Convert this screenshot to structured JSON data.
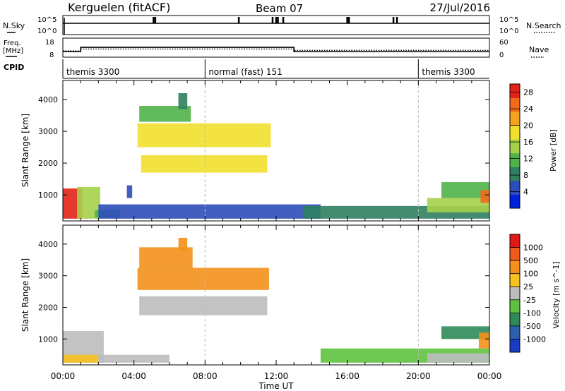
{
  "header": {
    "station": "Kerguelen (fitACF)",
    "beam": "Beam 07",
    "date": "27/Jul/2016"
  },
  "params": {
    "nsky_label": "N.Sky",
    "nsearch_label": "N.Search",
    "freq_label_1": "Freq.",
    "freq_label_2": "[MHz]",
    "nave_label": "Nave",
    "cpid_label": "CPID",
    "nsky_ticks": [
      "10^5",
      "10^0"
    ],
    "nsearch_ticks": [
      "10^5",
      "10^0"
    ],
    "freq_ticks": [
      "18",
      "8"
    ],
    "nave_ticks": [
      "60",
      "0"
    ],
    "cpid_segments": [
      {
        "name": "themis 3300",
        "start_h": 0,
        "end_h": 8
      },
      {
        "name": "normal (fast) 151",
        "start_h": 8,
        "end_h": 20
      },
      {
        "name": "themis 3300",
        "start_h": 20,
        "end_h": 24
      }
    ],
    "freq_steps": [
      {
        "start_h": 0,
        "end_h": 1,
        "value": 10.5
      },
      {
        "start_h": 1,
        "end_h": 13,
        "value": 13.2
      },
      {
        "start_h": 13,
        "end_h": 24,
        "value": 10.5
      }
    ],
    "nave_steps": [
      {
        "start_h": 0,
        "end_h": 1,
        "value": 18
      },
      {
        "start_h": 1,
        "end_h": 13,
        "value": 25
      },
      {
        "start_h": 13,
        "end_h": 24,
        "value": 20
      }
    ],
    "nsky_spike_hours": [
      5.1,
      5.2,
      9.9,
      11.8,
      12.0,
      12.1,
      12.4,
      16.0,
      16.1,
      18.6,
      18.8
    ]
  },
  "chart_data": [
    {
      "type": "heatmap",
      "title": "Power",
      "x_range_hours": [
        0,
        24
      ],
      "xticks": [
        "00:00",
        "04:00",
        "08:00",
        "12:00",
        "16:00",
        "20:00",
        "00:00"
      ],
      "xlabel": "Time UT",
      "ylabel": "Slant Range [km]",
      "ylim": [
        180,
        4600
      ],
      "yticks": [
        1000,
        2000,
        3000,
        4000
      ],
      "colorbar": {
        "label": "Power [dB]",
        "ticks": [
          4,
          8,
          12,
          16,
          20,
          24,
          28
        ],
        "range": [
          0,
          30
        ],
        "colors": [
          "#0022dd",
          "#2d4db8",
          "#2f8060",
          "#4fb24a",
          "#a6d24a",
          "#f2e02e",
          "#f5a21e",
          "#f06a1a",
          "#e2231a"
        ]
      },
      "regions": [
        {
          "t0": 0.0,
          "t1": 1.1,
          "r0": 250,
          "r1": 1200,
          "level": 8
        },
        {
          "t0": 0.8,
          "t1": 2.1,
          "r0": 250,
          "r1": 1250,
          "level": 4
        },
        {
          "t0": 1.8,
          "t1": 3.2,
          "r0": 280,
          "r1": 520,
          "level": 3
        },
        {
          "t0": 3.6,
          "t1": 3.9,
          "r0": 900,
          "r1": 1300,
          "level": 1
        },
        {
          "t0": 4.2,
          "t1": 11.7,
          "r0": 2500,
          "r1": 3250,
          "level": 5
        },
        {
          "t0": 4.4,
          "t1": 11.5,
          "r0": 1700,
          "r1": 2250,
          "level": 5
        },
        {
          "t0": 4.3,
          "t1": 7.2,
          "r0": 3300,
          "r1": 3800,
          "level": 3
        },
        {
          "t0": 6.5,
          "t1": 7.0,
          "r0": 3700,
          "r1": 4200,
          "level": 2
        },
        {
          "t0": 2.0,
          "t1": 14.5,
          "r0": 250,
          "r1": 700,
          "level": 1
        },
        {
          "t0": 13.5,
          "t1": 24.0,
          "r0": 250,
          "r1": 650,
          "level": 2
        },
        {
          "t0": 20.5,
          "t1": 24.0,
          "r0": 450,
          "r1": 900,
          "level": 4
        },
        {
          "t0": 21.3,
          "t1": 24.0,
          "r0": 900,
          "r1": 1400,
          "level": 3
        },
        {
          "t0": 23.5,
          "t1": 24.0,
          "r0": 750,
          "r1": 1150,
          "level": 7
        }
      ]
    },
    {
      "type": "heatmap",
      "title": "Velocity",
      "x_range_hours": [
        0,
        24
      ],
      "xticks": [
        "00:00",
        "04:00",
        "08:00",
        "12:00",
        "16:00",
        "20:00",
        "00:00"
      ],
      "xlabel": "Time UT",
      "ylabel": "Slant Range [km]",
      "ylim": [
        180,
        4600
      ],
      "yticks": [
        1000,
        2000,
        3000,
        4000
      ],
      "colorbar": {
        "label": "Velocity [m s^-1]",
        "ticks": [
          1000,
          500,
          100,
          25,
          -25,
          -100,
          -500,
          -1000
        ],
        "colors": [
          "#1a3cc4",
          "#2e5fb0",
          "#2f8a5a",
          "#5ec23e",
          "#bdbdbd",
          "#f6c21c",
          "#f3911c",
          "#ef5a1a",
          "#e0181a"
        ]
      },
      "regions": [
        {
          "t0": 0.0,
          "t1": 2.3,
          "r0": 250,
          "r1": 1250,
          "level": 4
        },
        {
          "t0": 0.0,
          "t1": 2.0,
          "r0": 250,
          "r1": 500,
          "level": 5
        },
        {
          "t0": 2.0,
          "t1": 6.0,
          "r0": 250,
          "r1": 500,
          "level": 4
        },
        {
          "t0": 4.2,
          "t1": 11.6,
          "r0": 2550,
          "r1": 3250,
          "level": 6
        },
        {
          "t0": 4.3,
          "t1": 7.3,
          "r0": 3250,
          "r1": 3900,
          "level": 6
        },
        {
          "t0": 4.3,
          "t1": 11.5,
          "r0": 1750,
          "r1": 2350,
          "level": 4
        },
        {
          "t0": 6.5,
          "t1": 7.0,
          "r0": 3800,
          "r1": 4200,
          "level": 6
        },
        {
          "t0": 14.5,
          "t1": 24.0,
          "r0": 250,
          "r1": 700,
          "level": 3
        },
        {
          "t0": 20.5,
          "t1": 24.0,
          "r0": 250,
          "r1": 550,
          "level": 4
        },
        {
          "t0": 21.3,
          "t1": 24.0,
          "r0": 1000,
          "r1": 1400,
          "level": 2
        },
        {
          "t0": 23.4,
          "t1": 24.0,
          "r0": 700,
          "r1": 1200,
          "level": 6
        }
      ]
    }
  ]
}
